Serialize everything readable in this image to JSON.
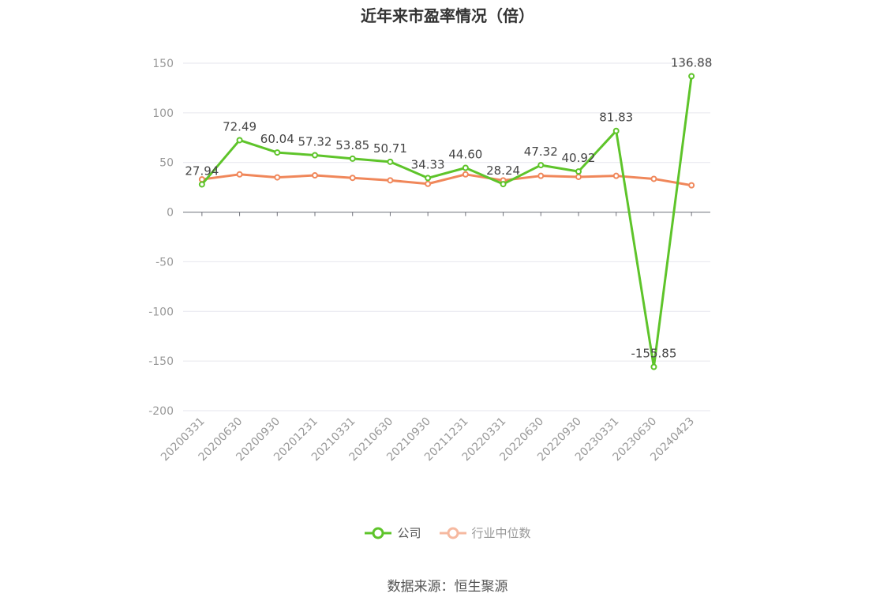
{
  "chart_data": {
    "type": "line",
    "title": "近年来市盈率情况（倍）",
    "categories": [
      "20200331",
      "20200630",
      "20200930",
      "20201231",
      "20210331",
      "20210630",
      "20210930",
      "20211231",
      "20220331",
      "20220630",
      "20220930",
      "20230331",
      "20230630",
      "20240423"
    ],
    "series": [
      {
        "name": "公司",
        "color": "#5ec42a",
        "values": [
          27.94,
          72.49,
          60.04,
          57.32,
          53.85,
          50.71,
          34.33,
          44.6,
          28.24,
          47.32,
          40.92,
          81.83,
          -155.85,
          136.88
        ],
        "labels": [
          "27.94",
          "72.49",
          "60.04",
          "57.32",
          "53.85",
          "50.71",
          "34.33",
          "44.60",
          "28.24",
          "47.32",
          "40.92",
          "81.83",
          "-155.85",
          "136.88"
        ]
      },
      {
        "name": "行业中位数",
        "color": "#f0875a",
        "values": [
          33.0,
          38.0,
          35.0,
          37.0,
          34.5,
          32.0,
          28.5,
          38.0,
          32.0,
          36.5,
          35.5,
          36.5,
          33.5,
          27.0
        ]
      }
    ],
    "ylim": [
      -200,
      150
    ],
    "yticks": [
      150,
      100,
      50,
      0,
      -50,
      -100,
      -150,
      -200
    ],
    "grid": true,
    "legend_position": "bottom-center"
  },
  "legend": {
    "company_label": "公司",
    "industry_label": "行业中位数"
  },
  "source": "数据来源：恒生聚源",
  "colors": {
    "grid": "#e6e6ee",
    "axis": "#6e7079",
    "tick_label": "#999999",
    "value_label": "#444444"
  }
}
